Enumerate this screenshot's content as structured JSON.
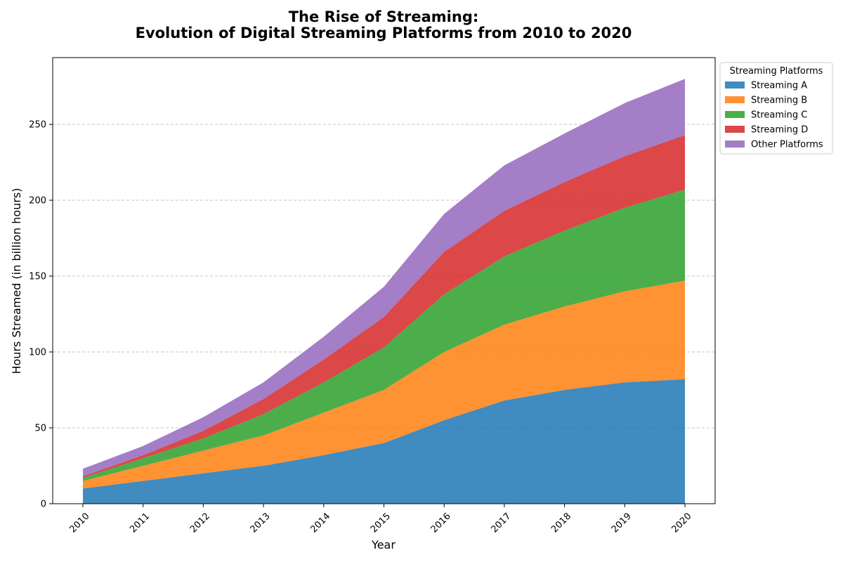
{
  "chart_data": {
    "type": "area",
    "stacked": true,
    "title_lines": [
      "The Rise of Streaming:",
      "Evolution of Digital Streaming Platforms from 2010 to 2020"
    ],
    "xlabel": "Year",
    "ylabel": "Hours Streamed (in billion hours)",
    "x": [
      "2010",
      "2011",
      "2012",
      "2013",
      "2014",
      "2015",
      "2016",
      "2017",
      "2018",
      "2019",
      "2020"
    ],
    "ylim": [
      0,
      294
    ],
    "yticks": [
      0,
      50,
      100,
      150,
      200,
      250
    ],
    "grid": "horizontal-dashed",
    "legend": {
      "title": "Streaming Platforms",
      "placement": "outside-top-right"
    },
    "series": [
      {
        "name": "Streaming A",
        "color": "#1f77b4",
        "values": [
          10,
          15,
          20,
          25,
          32,
          40,
          55,
          68,
          75,
          80,
          82
        ]
      },
      {
        "name": "Streaming B",
        "color": "#ff7f0e",
        "values": [
          5,
          10,
          15,
          20,
          28,
          35,
          45,
          50,
          55,
          60,
          65
        ]
      },
      {
        "name": "Streaming C",
        "color": "#2ca02c",
        "values": [
          2,
          5,
          8,
          14,
          20,
          28,
          38,
          45,
          50,
          55,
          60
        ]
      },
      {
        "name": "Streaming D",
        "color": "#d62728",
        "values": [
          1,
          2,
          5,
          10,
          15,
          20,
          28,
          30,
          32,
          34,
          36
        ]
      },
      {
        "name": "Other Platforms",
        "color": "#9467bd",
        "values": [
          5,
          6,
          9,
          11,
          15,
          20,
          25,
          30,
          32,
          35,
          37
        ]
      }
    ]
  }
}
